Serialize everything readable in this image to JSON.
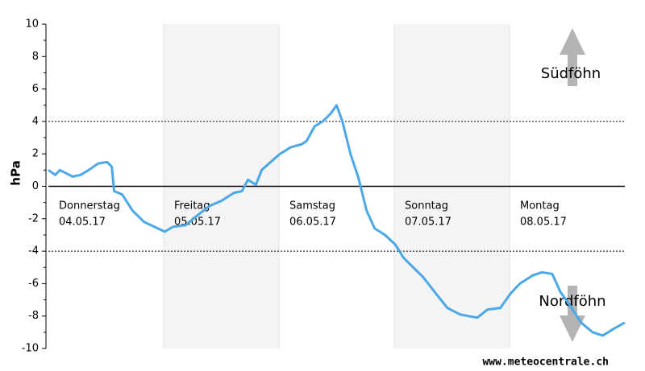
{
  "chart_data": {
    "type": "line",
    "y_label": "hPa",
    "days": [
      {
        "name": "Donnerstag",
        "date": "04.05.17"
      },
      {
        "name": "Freitag",
        "date": "05.05.17"
      },
      {
        "name": "Samstag",
        "date": "06.05.17"
      },
      {
        "name": "Sonntag",
        "date": "07.05.17"
      },
      {
        "name": "Montag",
        "date": "08.05.17"
      }
    ],
    "xlim": [
      0,
      5
    ],
    "ylim": [
      -10,
      10
    ],
    "yticks": [
      -10,
      -8,
      -6,
      -4,
      -2,
      0,
      2,
      4,
      6,
      8,
      10
    ],
    "yminorticks": [
      -9,
      -7,
      -5,
      -3,
      -1,
      1,
      3,
      5,
      7,
      9
    ],
    "reference_lines": [
      4,
      -4
    ],
    "annotations": {
      "upper": "Südföhn",
      "lower": "Nordföhn"
    },
    "watermark": "www.meteocentrale.ch",
    "series": [
      {
        "color": "#4aa8e8",
        "x": [
          0,
          0.06,
          0.1,
          0.21,
          0.28,
          0.35,
          0.43,
          0.51,
          0.55,
          0.57,
          0.64,
          0.73,
          0.83,
          0.92,
          1.01,
          1.08,
          1.19,
          1.29,
          1.4,
          1.5,
          1.61,
          1.68,
          1.73,
          1.8,
          1.85,
          1.96,
          2.01,
          2.1,
          2.2,
          2.24,
          2.31,
          2.38,
          2.45,
          2.5,
          2.55,
          2.62,
          2.69,
          2.76,
          2.83,
          2.92,
          3.01,
          3.08,
          3.15,
          3.25,
          3.36,
          3.46,
          3.57,
          3.64,
          3.72,
          3.81,
          3.92,
          4.01,
          4.09,
          4.2,
          4.28,
          4.37,
          4.44,
          4.51,
          4.62,
          4.72,
          4.81,
          4.9,
          5.0
        ],
        "values": [
          1.0,
          0.7,
          1.0,
          0.6,
          0.7,
          1.0,
          1.4,
          1.5,
          1.2,
          -0.3,
          -0.5,
          -1.5,
          -2.2,
          -2.5,
          -2.8,
          -2.5,
          -2.4,
          -1.8,
          -1.2,
          -0.9,
          -0.4,
          -0.3,
          0.4,
          0.1,
          1.0,
          1.7,
          2.0,
          2.4,
          2.6,
          2.8,
          3.7,
          4.0,
          4.5,
          5.0,
          4.0,
          2.0,
          0.5,
          -1.5,
          -2.6,
          -3.0,
          -3.6,
          -4.4,
          -4.9,
          -5.6,
          -6.6,
          -7.5,
          -7.9,
          -8.0,
          -8.1,
          -7.6,
          -7.5,
          -6.6,
          -6.0,
          -5.5,
          -5.3,
          -5.4,
          -6.5,
          -7.2,
          -8.4,
          -9.0,
          -9.2,
          -8.8,
          -8.4
        ]
      }
    ]
  }
}
